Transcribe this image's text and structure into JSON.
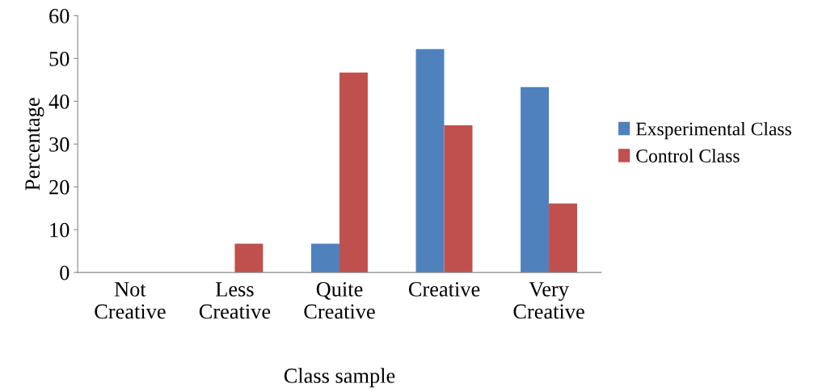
{
  "chart_data": {
    "type": "bar",
    "xlabel": "Class sample",
    "ylabel": "Percentage",
    "categories": [
      "Not\nCreative",
      "Less\nCreative",
      "Quite\nCreative",
      "Creative",
      "Very\nCreative"
    ],
    "series": [
      {
        "name": "Exsperimental Class",
        "color": "#4f81bd",
        "values": [
          0,
          0,
          6.7,
          52.2,
          43.3
        ]
      },
      {
        "name": "Control Class",
        "color": "#c0504d",
        "values": [
          0,
          6.7,
          46.7,
          34.4,
          16.1
        ]
      }
    ],
    "ylim": [
      0,
      60
    ],
    "yticks": [
      0,
      10,
      20,
      30,
      40,
      50,
      60
    ],
    "grid": false,
    "legend": "right"
  }
}
